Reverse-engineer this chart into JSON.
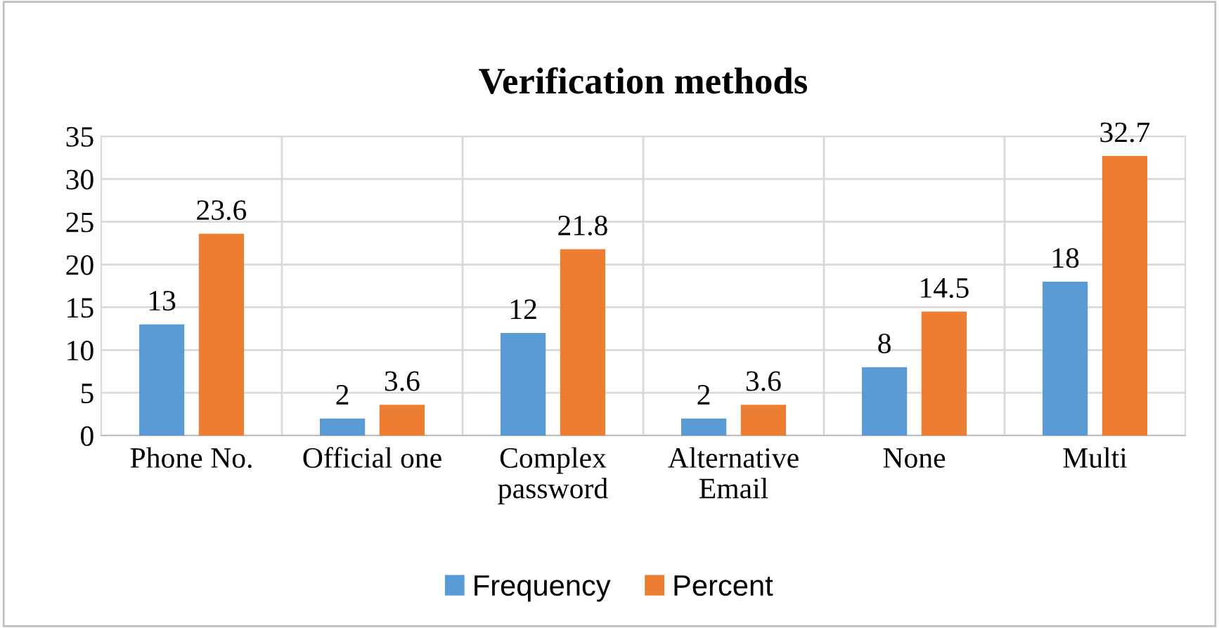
{
  "chart_data": {
    "type": "bar",
    "title": "Verification methods",
    "categories": [
      "Phone No.",
      "Official one",
      "Complex\npassword",
      "Alternative\nEmail",
      "None",
      "Multi"
    ],
    "series": [
      {
        "name": "Frequency",
        "color": "#5b9bd5",
        "values": [
          13,
          2,
          12,
          2,
          8,
          18
        ]
      },
      {
        "name": "Percent",
        "color": "#ed7d31",
        "values": [
          23.6,
          3.6,
          21.8,
          3.6,
          14.5,
          32.7
        ]
      }
    ],
    "ylim": [
      0,
      35
    ],
    "yticks": [
      0,
      5,
      10,
      15,
      20,
      25,
      30,
      35
    ],
    "grid": true,
    "legend": "bottom",
    "data_labels": true
  }
}
